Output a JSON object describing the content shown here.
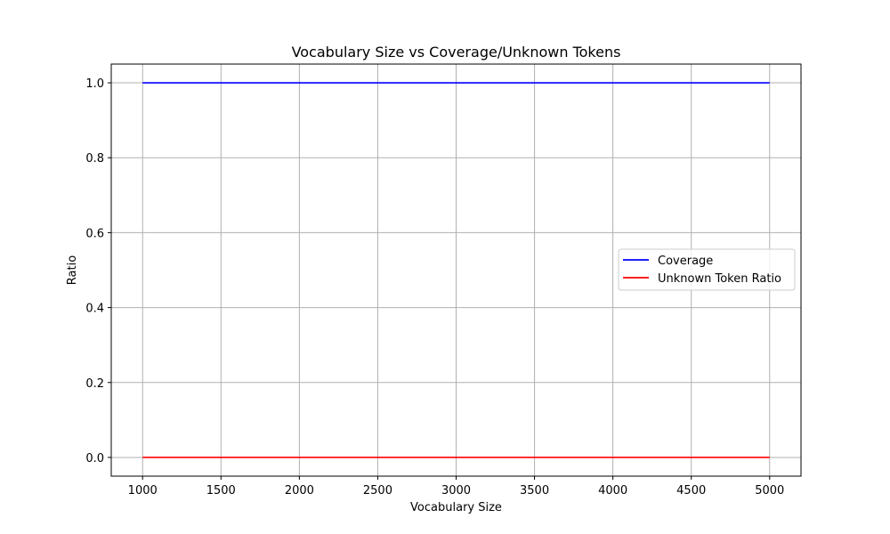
{
  "chart_data": {
    "type": "line",
    "title": "Vocabulary Size vs Coverage/Unknown Tokens",
    "xlabel": "Vocabulary Size",
    "ylabel": "Ratio",
    "x": [
      1000,
      2000,
      3000,
      4000,
      5000
    ],
    "series": [
      {
        "name": "Coverage",
        "color": "#0000ff",
        "values": [
          1.0,
          1.0,
          1.0,
          1.0,
          1.0
        ]
      },
      {
        "name": "Unknown Token Ratio",
        "color": "#ff0000",
        "values": [
          0.0,
          0.0,
          0.0,
          0.0,
          0.0
        ]
      }
    ],
    "xlim": [
      800,
      5200
    ],
    "ylim": [
      -0.05,
      1.05
    ],
    "xticks": [
      1000,
      1500,
      2000,
      2500,
      3000,
      3500,
      4000,
      4500,
      5000
    ],
    "yticks": [
      0.0,
      0.2,
      0.4,
      0.6,
      0.8,
      1.0
    ],
    "grid": true,
    "legend_position": "center-right"
  }
}
